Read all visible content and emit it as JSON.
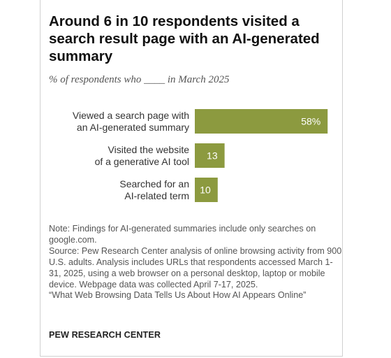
{
  "header": {
    "title": "Around 6 in 10 respondents visited a search result page with an AI-generated summary",
    "subtitle": "% of respondents who ____ in March 2025"
  },
  "chart_data": {
    "type": "bar",
    "orientation": "horizontal",
    "categories": [
      [
        "Viewed a search page with",
        "an AI-generated summary"
      ],
      [
        "Visited the website",
        "of a generative AI tool"
      ],
      [
        "Searched for an",
        "AI-related term"
      ]
    ],
    "values": [
      58,
      13,
      10
    ],
    "value_labels": [
      "58%",
      "13",
      "10"
    ],
    "bar_color": "#8c9a3f",
    "title": "Around 6 in 10 respondents visited a search result page with an AI-generated summary",
    "xlabel": "",
    "ylabel": "",
    "xlim": [
      0,
      100
    ],
    "grid": false,
    "legend": "none"
  },
  "footer": {
    "note": "Note: Findings for AI-generated summaries include only searches on google.com.",
    "source": "Source: Pew Research Center analysis of online browsing activity from 900 U.S. adults. Analysis includes URLs that respondents accessed March 1-31, 2025, using a web browser on a personal desktop, laptop or mobile device. Webpage data was collected April 7-17, 2025.",
    "report": "“What Web Browsing Data Tells Us About How AI Appears Online”",
    "organization": "PEW RESEARCH CENTER"
  }
}
